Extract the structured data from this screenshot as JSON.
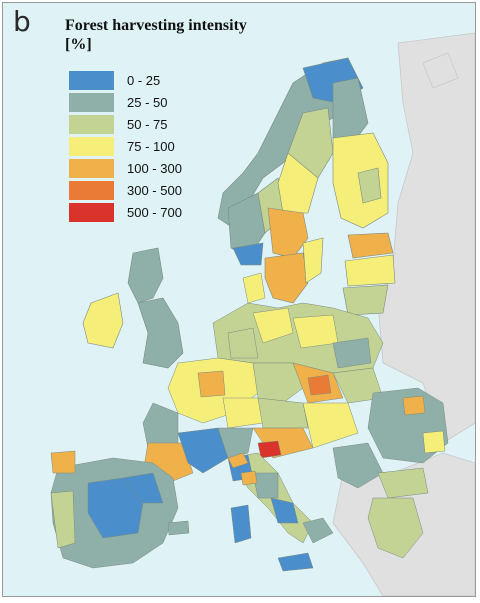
{
  "panel": {
    "letter": "b"
  },
  "legend": {
    "title_line1": "Forest harvesting intensity",
    "title_line2": "[%]",
    "classes": [
      {
        "label": "0 - 25",
        "color": "#4a8fcb"
      },
      {
        "label": "25 - 50",
        "color": "#8fb0a8"
      },
      {
        "label": "50 - 75",
        "color": "#c3d394"
      },
      {
        "label": "75 - 100",
        "color": "#f5ef7a"
      },
      {
        "label": "100 - 300",
        "color": "#f0b14b"
      },
      {
        "label": "300 - 500",
        "color": "#e97b37"
      },
      {
        "label": "500 - 700",
        "color": "#d9332b"
      }
    ]
  },
  "map": {
    "sea_color": "#dff3f7",
    "non_eu_land_color": "#e0e0e0",
    "border_color": "#7a8a80"
  }
}
